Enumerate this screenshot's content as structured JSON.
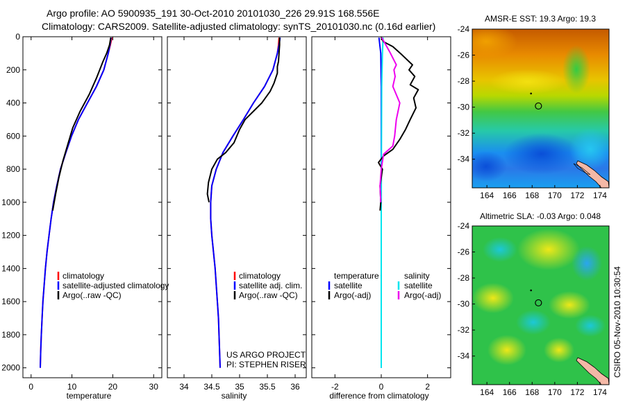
{
  "title": {
    "line1": "Argo profile: AO 5900935_191 30-Oct-2010 20101030_226 29.91S 168.556E",
    "line2": "Climatology: CARS2009. Satellite-adjusted climatology: synTS_20101030.nc (0.16d earlier)"
  },
  "colors": {
    "climatology": "#ff0000",
    "satellite": "#0000ff",
    "argo": "#000000",
    "sat_diff_salt": "#00e5ee",
    "argo_diff_salt": "#ee00ee"
  },
  "chart_data": [
    {
      "type": "line",
      "name": "temperature-panel",
      "xlabel": "temperature",
      "ylabel": "",
      "xlim": [
        -2,
        32
      ],
      "ylim": [
        2060,
        0
      ],
      "xticks": [
        0,
        10,
        20,
        30
      ],
      "yticks": [
        0,
        200,
        400,
        600,
        800,
        1000,
        1200,
        1400,
        1600,
        1800,
        2000
      ],
      "legend": [
        "climatology",
        "satellite-adjusted climatology",
        "Argo(..raw -QC)"
      ],
      "series": [
        {
          "name": "climatology",
          "color_key": "climatology",
          "points": [
            [
              19.8,
              5
            ],
            [
              19.4,
              50
            ],
            [
              18.9,
              100
            ],
            [
              17.8,
              200
            ],
            [
              16.0,
              300
            ],
            [
              13.8,
              400
            ],
            [
              11.6,
              500
            ],
            [
              9.9,
              600
            ],
            [
              8.5,
              700
            ],
            [
              7.2,
              800
            ],
            [
              6.3,
              900
            ],
            [
              5.5,
              1000
            ],
            [
              4.9,
              1100
            ],
            [
              4.4,
              1200
            ],
            [
              3.9,
              1300
            ],
            [
              3.5,
              1400
            ],
            [
              3.2,
              1500
            ],
            [
              2.9,
              1600
            ],
            [
              2.7,
              1700
            ],
            [
              2.5,
              1800
            ],
            [
              2.35,
              1900
            ],
            [
              2.25,
              2000
            ]
          ]
        },
        {
          "name": "satellite-adjusted climatology",
          "color_key": "satellite",
          "points": [
            [
              19.6,
              5
            ],
            [
              19.3,
              50
            ],
            [
              18.9,
              100
            ],
            [
              17.8,
              200
            ],
            [
              16.0,
              300
            ],
            [
              13.8,
              400
            ],
            [
              11.6,
              500
            ],
            [
              9.9,
              600
            ],
            [
              8.5,
              700
            ],
            [
              7.2,
              800
            ],
            [
              6.3,
              900
            ],
            [
              5.5,
              1000
            ],
            [
              4.9,
              1100
            ],
            [
              4.4,
              1200
            ],
            [
              3.9,
              1300
            ],
            [
              3.5,
              1400
            ],
            [
              3.2,
              1500
            ],
            [
              2.9,
              1600
            ],
            [
              2.7,
              1700
            ],
            [
              2.5,
              1800
            ],
            [
              2.35,
              1900
            ],
            [
              2.25,
              2000
            ]
          ]
        },
        {
          "name": "Argo(..raw -QC)",
          "color_key": "argo",
          "points": [
            [
              19.5,
              5
            ],
            [
              19.2,
              50
            ],
            [
              18.5,
              100
            ],
            [
              17.6,
              150
            ],
            [
              16.0,
              250
            ],
            [
              14.2,
              350
            ],
            [
              12.0,
              450
            ],
            [
              10.2,
              550
            ],
            [
              9.0,
              650
            ],
            [
              7.8,
              750
            ],
            [
              6.8,
              850
            ],
            [
              6.0,
              950
            ],
            [
              5.3,
              1050
            ]
          ]
        }
      ]
    },
    {
      "type": "line",
      "name": "salinity-panel",
      "xlabel": "salinity",
      "ylabel": "",
      "xlim": [
        33.7,
        36.2
      ],
      "ylim": [
        2060,
        0
      ],
      "xticks": [
        34,
        34.5,
        35,
        35.5,
        36
      ],
      "legend": [
        "climatology",
        "satellite adj. clim.",
        "Argo(..raw -QC)"
      ],
      "annotation": [
        "US ARGO PROJECT",
        "PI: STEPHEN RISER"
      ],
      "series": [
        {
          "name": "climatology",
          "color_key": "climatology",
          "points": [
            [
              35.71,
              5
            ],
            [
              35.7,
              50
            ],
            [
              35.68,
              100
            ],
            [
              35.6,
              200
            ],
            [
              35.45,
              300
            ],
            [
              35.25,
              400
            ],
            [
              35.07,
              500
            ],
            [
              34.88,
              600
            ],
            [
              34.7,
              700
            ],
            [
              34.58,
              800
            ],
            [
              34.5,
              900
            ],
            [
              34.48,
              1000
            ],
            [
              34.48,
              1100
            ],
            [
              34.5,
              1200
            ],
            [
              34.53,
              1300
            ],
            [
              34.56,
              1400
            ],
            [
              34.58,
              1500
            ],
            [
              34.6,
              1600
            ],
            [
              34.62,
              1700
            ],
            [
              34.63,
              1800
            ],
            [
              34.64,
              1900
            ],
            [
              34.65,
              2000
            ]
          ]
        },
        {
          "name": "satellite adj. clim.",
          "color_key": "satellite",
          "points": [
            [
              35.73,
              5
            ],
            [
              35.71,
              50
            ],
            [
              35.68,
              100
            ],
            [
              35.6,
              200
            ],
            [
              35.45,
              300
            ],
            [
              35.25,
              400
            ],
            [
              35.07,
              500
            ],
            [
              34.88,
              600
            ],
            [
              34.7,
              700
            ],
            [
              34.58,
              800
            ],
            [
              34.5,
              900
            ],
            [
              34.48,
              1000
            ],
            [
              34.48,
              1100
            ],
            [
              34.5,
              1200
            ],
            [
              34.53,
              1300
            ],
            [
              34.56,
              1400
            ],
            [
              34.58,
              1500
            ],
            [
              34.6,
              1600
            ],
            [
              34.62,
              1700
            ],
            [
              34.63,
              1800
            ],
            [
              34.64,
              1900
            ],
            [
              34.65,
              2000
            ]
          ]
        },
        {
          "name": "Argo(..raw -QC)",
          "color_key": "argo",
          "points": [
            [
              35.72,
              5
            ],
            [
              35.72,
              50
            ],
            [
              35.71,
              100
            ],
            [
              35.7,
              150
            ],
            [
              35.68,
              180
            ],
            [
              35.68,
              220
            ],
            [
              35.62,
              280
            ],
            [
              35.55,
              330
            ],
            [
              35.4,
              400
            ],
            [
              35.25,
              450
            ],
            [
              35.1,
              500
            ],
            [
              35.0,
              560
            ],
            [
              34.9,
              640
            ],
            [
              34.75,
              700
            ],
            [
              34.6,
              740
            ],
            [
              34.5,
              800
            ],
            [
              34.44,
              880
            ],
            [
              34.42,
              950
            ],
            [
              34.45,
              1000
            ]
          ]
        }
      ]
    },
    {
      "type": "line",
      "name": "difference-panel",
      "xlabel": "difference from climatology",
      "ylabel": "",
      "xlim": [
        -3,
        3
      ],
      "ylim": [
        2060,
        0
      ],
      "xticks": [
        -2,
        0,
        2
      ],
      "legend_groups": [
        {
          "heading": "temperature",
          "items": [
            "satellite",
            "Argo(-adj)"
          ]
        },
        {
          "heading": "salinity",
          "items": [
            "satellite",
            "Argo(-adj)"
          ]
        }
      ],
      "series": [
        {
          "name": "temperature satellite",
          "color_key": "satellite",
          "points": [
            [
              -0.1,
              5
            ],
            [
              -0.02,
              100
            ],
            [
              0,
              300
            ],
            [
              0,
              1000
            ],
            [
              0,
              2000
            ]
          ]
        },
        {
          "name": "salinity satellite",
          "color_key": "sat_diff_salt",
          "points": [
            [
              0.08,
              5
            ],
            [
              0.05,
              100
            ],
            [
              0.02,
              300
            ],
            [
              0.01,
              700
            ],
            [
              0,
              1000
            ],
            [
              0,
              2000
            ]
          ]
        },
        {
          "name": "temperature Argo(-adj)",
          "color_key": "argo",
          "points": [
            [
              0,
              5
            ],
            [
              0.1,
              30
            ],
            [
              0.5,
              60
            ],
            [
              0.9,
              110
            ],
            [
              1.35,
              170
            ],
            [
              1.2,
              200
            ],
            [
              1.45,
              240
            ],
            [
              1.25,
              290
            ],
            [
              1.6,
              320
            ],
            [
              1.4,
              370
            ],
            [
              1.5,
              430
            ],
            [
              1.25,
              500
            ],
            [
              1.05,
              560
            ],
            [
              0.8,
              620
            ],
            [
              0.5,
              680
            ],
            [
              0.1,
              720
            ],
            [
              -0.12,
              760
            ],
            [
              0.05,
              800
            ],
            [
              -0.05,
              900
            ],
            [
              -0.02,
              1000
            ],
            [
              -0.05,
              1050
            ]
          ]
        },
        {
          "name": "salinity Argo(-adj)",
          "color_key": "argo_diff_salt",
          "points": [
            [
              0.02,
              5
            ],
            [
              0.4,
              100
            ],
            [
              0.65,
              170
            ],
            [
              0.55,
              200
            ],
            [
              0.6,
              240
            ],
            [
              0.5,
              300
            ],
            [
              0.8,
              400
            ],
            [
              0.65,
              500
            ],
            [
              0.58,
              600
            ],
            [
              0.5,
              660
            ],
            [
              0.1,
              710
            ],
            [
              0,
              800
            ],
            [
              -0.05,
              900
            ],
            [
              -0.02,
              1000
            ]
          ]
        }
      ]
    }
  ],
  "maps": [
    {
      "title": "AMSR-E SST: 19.3 Argo: 19.3",
      "xticks": [
        164,
        166,
        168,
        170,
        172,
        174
      ],
      "yticks": [
        -24,
        -26,
        -28,
        -30,
        -32,
        -34
      ],
      "xlim": [
        162.7,
        174.8
      ],
      "ylim": [
        -36.2,
        -24
      ],
      "float_lon": 168.556,
      "float_lat": -29.91,
      "prev_lon": 167.9,
      "prev_lat": -28.95
    },
    {
      "title": "Altimetric SLA: -0.03 Argo: 0.048",
      "xticks": [
        164,
        166,
        168,
        170,
        172,
        174
      ],
      "yticks": [
        -24,
        -26,
        -28,
        -30,
        -32,
        -34
      ],
      "xlim": [
        162.7,
        174.8
      ],
      "ylim": [
        -36.2,
        -24
      ],
      "float_lon": 168.556,
      "float_lat": -29.91,
      "prev_lon": 167.9,
      "prev_lat": -28.95
    }
  ],
  "footer_stamp": "CSIRO 05-Nov-2010 10:30:54"
}
